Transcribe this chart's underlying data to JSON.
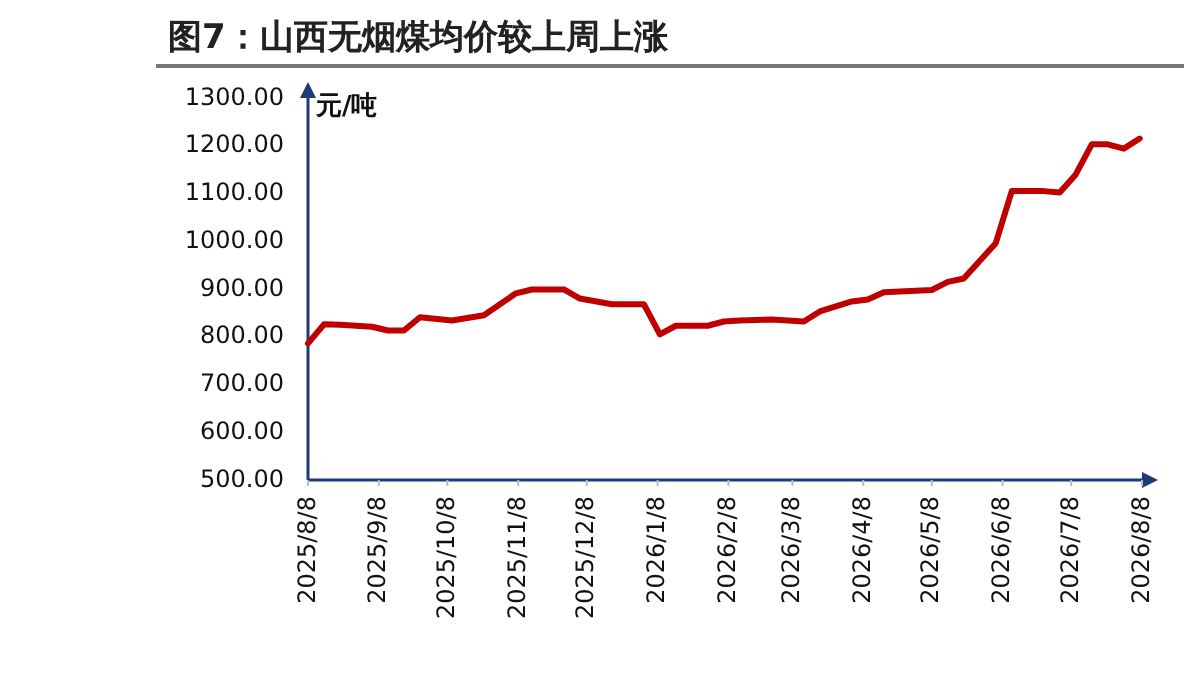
{
  "chart_data": {
    "type": "line",
    "title": "图7：山西无烟煤均价较上周上涨",
    "ylabel": "元/吨",
    "x": [
      "2025-08-08",
      "2025-08-15",
      "2025-08-22",
      "2025-09-05",
      "2025-09-12",
      "2025-09-19",
      "2025-09-26",
      "2025-10-10",
      "2025-10-24",
      "2025-11-07",
      "2025-11-14",
      "2025-11-28",
      "2025-12-05",
      "2025-12-19",
      "2026-01-02",
      "2026-01-09",
      "2026-01-16",
      "2026-01-30",
      "2026-02-06",
      "2026-02-13",
      "2026-02-27",
      "2026-03-13",
      "2026-03-20",
      "2026-04-03",
      "2026-04-10",
      "2026-04-17",
      "2026-05-08",
      "2026-05-15",
      "2026-05-22",
      "2026-06-05",
      "2026-06-12",
      "2026-06-26",
      "2026-07-03",
      "2026-07-10",
      "2026-07-17",
      "2026-07-24",
      "2026-07-31",
      "2026-08-07"
    ],
    "series": [
      {
        "color": "#c00000",
        "values": [
          786,
          826,
          825,
          821,
          813,
          813,
          841,
          834,
          845,
          891,
          899,
          899,
          880,
          868,
          868,
          805,
          823,
          823,
          832,
          834,
          836,
          832,
          853,
          874,
          878,
          893,
          898,
          915,
          922,
          996,
          1105,
          1105,
          1102,
          1140,
          1203,
          1203,
          1194,
          1215
        ]
      }
    ],
    "xlim": [
      "2025-08-08",
      "2026-08-08"
    ],
    "ylim": [
      500,
      1300
    ],
    "xticks": [
      {
        "value": "2025-08-08",
        "label": "2025/8/8"
      },
      {
        "value": "2025-09-08",
        "label": "2025/9/8"
      },
      {
        "value": "2025-10-08",
        "label": "2025/10/8"
      },
      {
        "value": "2025-11-08",
        "label": "2025/11/8"
      },
      {
        "value": "2025-12-08",
        "label": "2025/12/8"
      },
      {
        "value": "2026-01-08",
        "label": "2026/1/8"
      },
      {
        "value": "2026-02-08",
        "label": "2026/2/8"
      },
      {
        "value": "2026-03-08",
        "label": "2026/3/8"
      },
      {
        "value": "2026-04-08",
        "label": "2026/4/8"
      },
      {
        "value": "2026-05-08",
        "label": "2026/5/8"
      },
      {
        "value": "2026-06-08",
        "label": "2026/6/8"
      },
      {
        "value": "2026-07-08",
        "label": "2026/7/8"
      },
      {
        "value": "2026-08-08",
        "label": "2026/8/8"
      }
    ],
    "yticks": [
      {
        "value": 500,
        "label": "500.00"
      },
      {
        "value": 600,
        "label": "600.00"
      },
      {
        "value": 700,
        "label": "700.00"
      },
      {
        "value": 800,
        "label": "800.00"
      },
      {
        "value": 900,
        "label": "900.00"
      },
      {
        "value": 1000,
        "label": "1000.00"
      },
      {
        "value": 1100,
        "label": "1100.00"
      },
      {
        "value": 1200,
        "label": "1200.00"
      },
      {
        "value": 1300,
        "label": "1300.00"
      }
    ]
  }
}
